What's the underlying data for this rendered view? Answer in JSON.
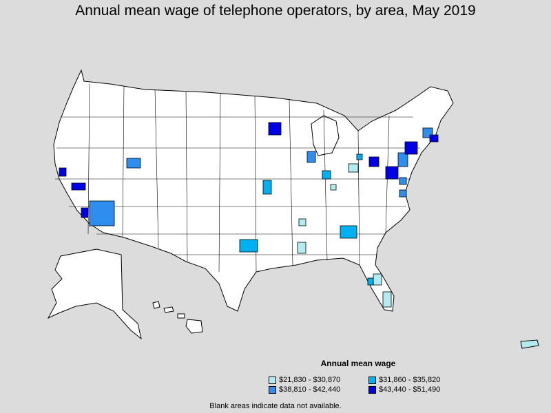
{
  "title": "Annual mean wage of telephone operators, by area, May 2019",
  "legend": {
    "title": "Annual mean wage",
    "items": [
      {
        "label": "$21,830 - $30,870",
        "color": "#b3ecf0"
      },
      {
        "label": "$31,860 - $35,820",
        "color": "#00b0f0"
      },
      {
        "label": "$38,810 - $42,440",
        "color": "#2e8ef0"
      },
      {
        "label": "$43,440 - $51,490",
        "color": "#0000e6"
      }
    ]
  },
  "footnote": "Blank areas indicate data not available.",
  "colors": {
    "background": "#dcdcdc",
    "land": "#ffffff",
    "border": "#000000"
  }
}
